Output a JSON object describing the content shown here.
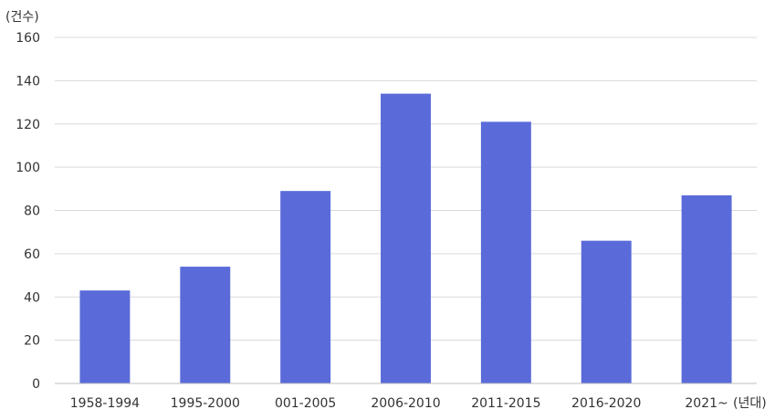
{
  "chart_data": {
    "type": "bar",
    "categories": [
      "1958-1994",
      "1995-2000",
      "001-2005",
      "2006-2010",
      "2011-2015",
      "2016-2020",
      "2021~"
    ],
    "values": [
      43,
      54,
      89,
      134,
      121,
      66,
      87
    ],
    "title": "",
    "ylabel": "(건수)",
    "xlabel": "(년대)",
    "ylim": [
      0,
      160
    ],
    "yticks": [
      0,
      20,
      40,
      60,
      80,
      100,
      120,
      140,
      160
    ],
    "grid": true,
    "legend": "none",
    "colors": {
      "bar": "#5A6BD9",
      "grid": "#D9D9D9",
      "axis": "#BFBFBF",
      "text": "#333333"
    }
  }
}
